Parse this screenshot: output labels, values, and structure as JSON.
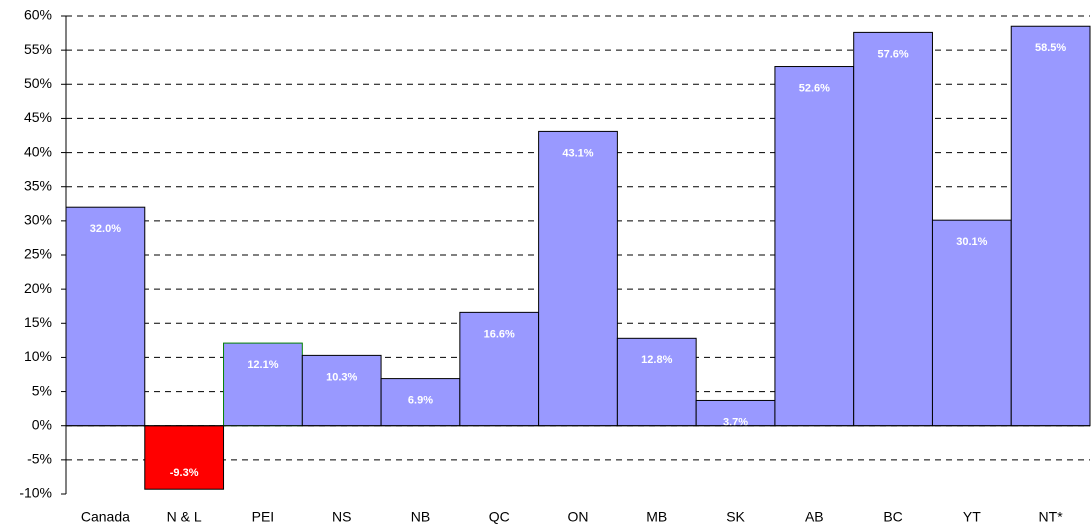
{
  "chart_data": {
    "type": "bar",
    "categories": [
      "Canada",
      "N & L",
      "PEI",
      "NS",
      "NB",
      "QC",
      "ON",
      "MB",
      "SK",
      "AB",
      "BC",
      "YT",
      "NT*"
    ],
    "values": [
      32.0,
      -9.3,
      12.1,
      10.3,
      6.9,
      16.6,
      43.1,
      12.8,
      3.7,
      52.6,
      57.6,
      30.1,
      58.5
    ],
    "value_labels": [
      "32.0%",
      "-9.3%",
      "12.1%",
      "10.3%",
      "6.9%",
      "16.6%",
      "43.1%",
      "12.8%",
      "3.7%",
      "52.6%",
      "57.6%",
      "30.1%",
      "58.5%"
    ],
    "colors": [
      "#9999ff",
      "#ff0000",
      "#9999ff",
      "#9999ff",
      "#9999ff",
      "#9999ff",
      "#9999ff",
      "#9999ff",
      "#9999ff",
      "#9999ff",
      "#9999ff",
      "#9999ff",
      "#9999ff"
    ],
    "edge_colors": [
      "#000000",
      "#000000",
      "#008000",
      "#000000",
      "#000000",
      "#000000",
      "#000000",
      "#000000",
      "#000000",
      "#000000",
      "#000000",
      "#000000",
      "#000000"
    ],
    "ylim": [
      -10,
      60
    ],
    "yticks": [
      {
        "value": -10,
        "label": "-10%"
      },
      {
        "value": -5,
        "label": "-5%"
      },
      {
        "value": 0,
        "label": "0%"
      },
      {
        "value": 5,
        "label": "5%"
      },
      {
        "value": 10,
        "label": "10%"
      },
      {
        "value": 15,
        "label": "15%"
      },
      {
        "value": 20,
        "label": "20%"
      },
      {
        "value": 25,
        "label": "25%"
      },
      {
        "value": 30,
        "label": "30%"
      },
      {
        "value": 35,
        "label": "35%"
      },
      {
        "value": 40,
        "label": "40%"
      },
      {
        "value": 45,
        "label": "45%"
      },
      {
        "value": 50,
        "label": "50%"
      },
      {
        "value": 55,
        "label": "55%"
      },
      {
        "value": 60,
        "label": "60%"
      }
    ],
    "grid": true
  }
}
